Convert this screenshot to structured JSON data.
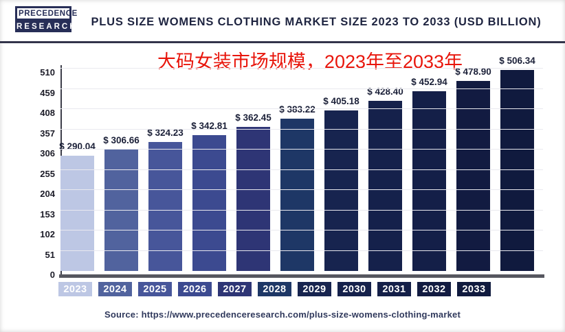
{
  "header": {
    "logo_line1": "PRECEDENCE",
    "logo_line2": "RESEARCH",
    "title": "PLUS SIZE WOMENS CLOTHING MARKET SIZE 2023 TO 2033 (USD BILLION)"
  },
  "subtitle_cn": "大码女装市场规模，2023年至2033年",
  "source": "Source: https://www.precedenceresearch.com/plus-size-womens-clothing-market",
  "chart_data": {
    "type": "bar",
    "title": "Plus Size Womens Clothing Market Size 2023 to 2033 (USD Billion)",
    "categories": [
      "2023",
      "2024",
      "2025",
      "2026",
      "2027",
      "2028",
      "2029",
      "2030",
      "2031",
      "2032",
      "2033"
    ],
    "values": [
      290.04,
      306.66,
      324.23,
      342.81,
      362.45,
      383.22,
      405.18,
      428.4,
      452.94,
      478.9,
      506.34
    ],
    "value_labels": [
      "$ 290.04",
      "$ 306.66",
      "$ 324.23",
      "$ 342.81",
      "$ 362.45",
      "$ 383.22",
      "$ 405.18",
      "$ 428.40",
      "$ 452.94",
      "$ 478.90",
      "$ 506.34"
    ],
    "yticks": [
      0,
      51,
      102,
      153,
      204,
      255,
      306,
      357,
      408,
      459,
      510
    ],
    "ylim": [
      0,
      510
    ],
    "xlabel": "",
    "ylabel": "",
    "grid": true,
    "legend": false,
    "bar_colors": [
      "#bdc7e4",
      "#51639e",
      "#47569a",
      "#3c4a90",
      "#2e3575",
      "#1e3766",
      "#17244f",
      "#15214b",
      "#141f48",
      "#121b41",
      "#101a3e"
    ],
    "unit": "USD Billion"
  },
  "colors": {
    "accent_red": "#e8150b",
    "navy_dark": "#1e2440",
    "axis_gray": "#56575f"
  }
}
